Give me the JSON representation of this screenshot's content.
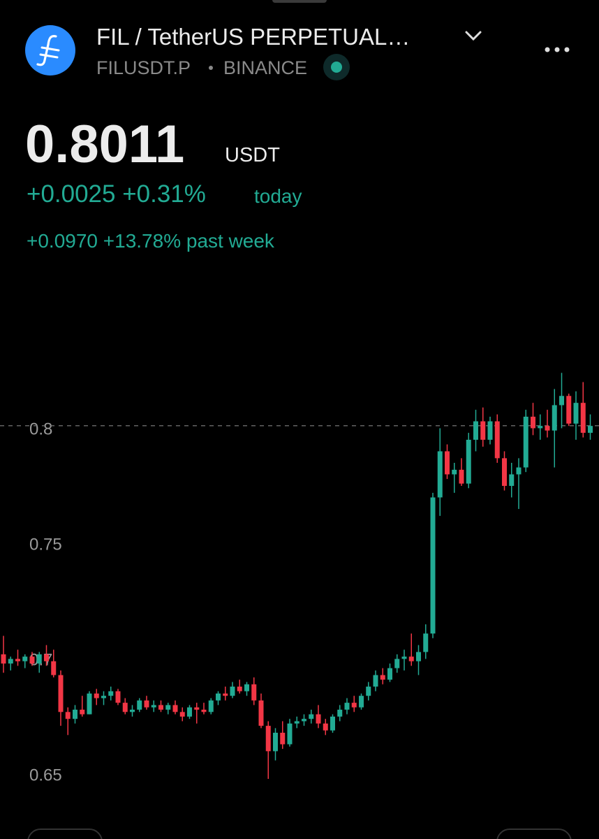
{
  "header": {
    "title": "FIL / TetherUS PERPETUAL…",
    "ticker": "FILUSDT.P",
    "exchange": "BINANCE"
  },
  "price": {
    "value": 0.8011,
    "unit": "USDT",
    "change_today": "+0.0025 +0.31%",
    "today_label": "today",
    "change_week": "+0.0970 +13.78% past week"
  },
  "chart_data": {
    "type": "candlestick",
    "up_color": "#22ab94",
    "down_color": "#f23645",
    "ylim": [
      0.628,
      0.865
    ],
    "yticks": [
      0.65,
      0.7,
      0.75,
      0.8
    ],
    "open": [
      0.702,
      0.698,
      0.7,
      0.699,
      0.701,
      0.698,
      0.702,
      0.699,
      0.693,
      0.677,
      0.674,
      0.678,
      0.676,
      0.685,
      0.683,
      0.684,
      0.686,
      0.681,
      0.677,
      0.678,
      0.682,
      0.679,
      0.68,
      0.678,
      0.68,
      0.677,
      0.675,
      0.679,
      0.678,
      0.677,
      0.682,
      0.685,
      0.684,
      0.688,
      0.686,
      0.689,
      0.682,
      0.671,
      0.66,
      0.668,
      0.663,
      0.672,
      0.673,
      0.674,
      0.676,
      0.672,
      0.669,
      0.675,
      0.678,
      0.681,
      0.679,
      0.684,
      0.688,
      0.693,
      0.691,
      0.696,
      0.7,
      0.701,
      0.699,
      0.703,
      0.711,
      0.77,
      0.79,
      0.78,
      0.782,
      0.776,
      0.795,
      0.803,
      0.795,
      0.803,
      0.787,
      0.775,
      0.78,
      0.783,
      0.805,
      0.8,
      0.801,
      0.799,
      0.81,
      0.814,
      0.802,
      0.811,
      0.798
    ],
    "high": [
      0.71,
      0.701,
      0.704,
      0.702,
      0.703,
      0.703,
      0.706,
      0.704,
      0.695,
      0.679,
      0.68,
      0.684,
      0.686,
      0.687,
      0.686,
      0.688,
      0.687,
      0.683,
      0.68,
      0.683,
      0.684,
      0.682,
      0.682,
      0.681,
      0.682,
      0.679,
      0.68,
      0.681,
      0.681,
      0.683,
      0.686,
      0.688,
      0.69,
      0.691,
      0.69,
      0.692,
      0.685,
      0.673,
      0.67,
      0.673,
      0.674,
      0.675,
      0.676,
      0.678,
      0.68,
      0.674,
      0.676,
      0.68,
      0.683,
      0.684,
      0.685,
      0.69,
      0.695,
      0.696,
      0.698,
      0.702,
      0.704,
      0.711,
      0.706,
      0.715,
      0.772,
      0.8,
      0.793,
      0.785,
      0.787,
      0.798,
      0.808,
      0.809,
      0.805,
      0.806,
      0.79,
      0.785,
      0.787,
      0.808,
      0.811,
      0.806,
      0.808,
      0.817,
      0.824,
      0.815,
      0.816,
      0.82,
      0.806
    ],
    "low": [
      0.694,
      0.695,
      0.697,
      0.696,
      0.697,
      0.694,
      0.697,
      0.692,
      0.671,
      0.667,
      0.672,
      0.675,
      0.676,
      0.68,
      0.68,
      0.682,
      0.68,
      0.676,
      0.675,
      0.677,
      0.678,
      0.677,
      0.677,
      0.676,
      0.676,
      0.673,
      0.674,
      0.672,
      0.676,
      0.676,
      0.68,
      0.682,
      0.683,
      0.685,
      0.684,
      0.68,
      0.67,
      0.648,
      0.656,
      0.661,
      0.662,
      0.67,
      0.671,
      0.672,
      0.67,
      0.667,
      0.668,
      0.673,
      0.676,
      0.677,
      0.678,
      0.682,
      0.686,
      0.689,
      0.69,
      0.694,
      0.695,
      0.697,
      0.693,
      0.7,
      0.709,
      0.762,
      0.778,
      0.772,
      0.775,
      0.774,
      0.79,
      0.792,
      0.793,
      0.785,
      0.773,
      0.77,
      0.765,
      0.781,
      0.797,
      0.795,
      0.796,
      0.783,
      0.8,
      0.801,
      0.795,
      0.796,
      0.795
    ],
    "close": [
      0.698,
      0.7,
      0.699,
      0.701,
      0.698,
      0.702,
      0.699,
      0.693,
      0.677,
      0.674,
      0.678,
      0.676,
      0.685,
      0.683,
      0.684,
      0.686,
      0.681,
      0.677,
      0.678,
      0.682,
      0.679,
      0.68,
      0.678,
      0.68,
      0.677,
      0.675,
      0.679,
      0.678,
      0.677,
      0.682,
      0.685,
      0.684,
      0.688,
      0.686,
      0.689,
      0.682,
      0.671,
      0.66,
      0.668,
      0.663,
      0.672,
      0.673,
      0.674,
      0.676,
      0.672,
      0.669,
      0.675,
      0.678,
      0.681,
      0.679,
      0.684,
      0.688,
      0.693,
      0.691,
      0.696,
      0.7,
      0.701,
      0.699,
      0.703,
      0.711,
      0.77,
      0.79,
      0.78,
      0.782,
      0.776,
      0.795,
      0.803,
      0.795,
      0.803,
      0.787,
      0.775,
      0.78,
      0.783,
      0.805,
      0.8,
      0.801,
      0.799,
      0.81,
      0.814,
      0.802,
      0.811,
      0.798,
      0.801
    ]
  }
}
